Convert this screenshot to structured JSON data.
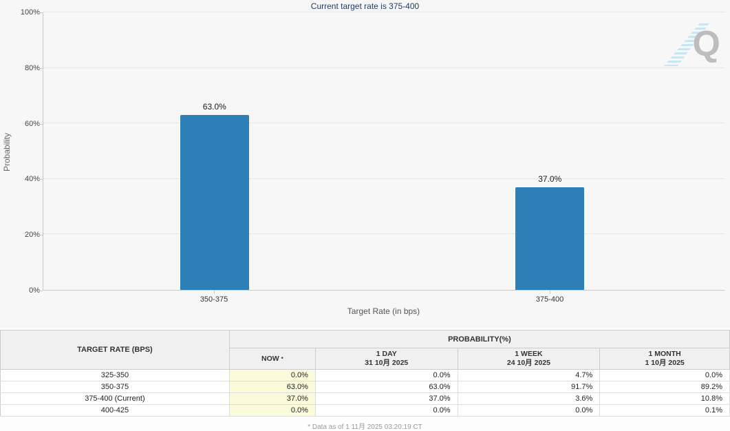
{
  "chart_data": {
    "type": "bar",
    "title": "Current target rate is 375-400",
    "categories": [
      "350-375",
      "375-400"
    ],
    "values": [
      63.0,
      37.0
    ],
    "bar_labels": [
      "63.0%",
      "37.0%"
    ],
    "xlabel": "Target Rate (in bps)",
    "ylabel": "Probability",
    "ylim": [
      0,
      100
    ],
    "yticks": [
      "0%",
      "20%",
      "40%",
      "60%",
      "80%",
      "100%"
    ],
    "grid": "horizontal-dotted",
    "legend": "none",
    "bar_color": "#2d7fb8"
  },
  "watermark": {
    "letter": "Q"
  },
  "table": {
    "rate_header": "TARGET RATE (BPS)",
    "group_header": "PROBABILITY(%)",
    "columns": [
      {
        "label": "NOW",
        "marker": "*",
        "sub": ""
      },
      {
        "label": "1 DAY",
        "sub": "31 10月 2025"
      },
      {
        "label": "1 WEEK",
        "sub": "24 10月 2025"
      },
      {
        "label": "1 MONTH",
        "sub": "1 10月 2025"
      }
    ],
    "rows": [
      {
        "rate": "325-350",
        "cells": [
          "0.0%",
          "0.0%",
          "4.7%",
          "0.0%"
        ]
      },
      {
        "rate": "350-375",
        "cells": [
          "63.0%",
          "63.0%",
          "91.7%",
          "89.2%"
        ]
      },
      {
        "rate": "375-400 (Current)",
        "cells": [
          "37.0%",
          "37.0%",
          "3.6%",
          "10.8%"
        ]
      },
      {
        "rate": "400-425",
        "cells": [
          "0.0%",
          "0.0%",
          "0.0%",
          "0.1%"
        ]
      }
    ]
  },
  "footnote": "* Data as of 1 11月 2025 03:20:19 CT",
  "colors": {
    "bar": "#2d7fb8",
    "chart_background": "#f7f7f7",
    "now_column_highlight": "#fbfbdc",
    "title_text": "#1f3a63"
  }
}
